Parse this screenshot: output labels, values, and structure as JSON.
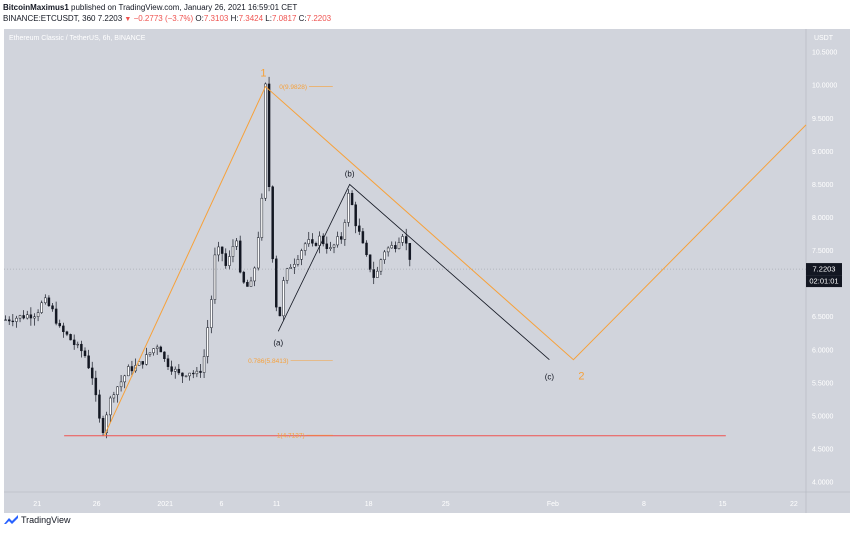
{
  "header": {
    "line1_user": "BitcoinMaximus1",
    "line1_rest": "published on TradingView.com, January 26, 2021 16:59:01 CET",
    "line2_symbol": "BINANCE:ETCUSDT, 360",
    "line2_last": "7.2203",
    "line2_change": "−0.2773 (−3.7%)",
    "line2_o_label": "O:",
    "line2_o": "7.3103",
    "line2_h_label": "H:",
    "line2_h": "7.3424",
    "line2_l_label": "L:",
    "line2_l": "7.0817",
    "line2_c_label": "C:",
    "line2_c": "7.2203"
  },
  "footer": {
    "brand": "TradingView"
  },
  "colors": {
    "background": "#d1d4dc",
    "candle": "#131722",
    "wave": "#f7a13a",
    "corrective": "#131722",
    "support": "#ef5350",
    "price_tag": "#131722"
  },
  "chart_data": {
    "type": "candlestick",
    "title": "Ethereum Classic / TetherUS, 6h, BINANCE",
    "y_unit": "USDT",
    "ylim": [
      3.85,
      10.85
    ],
    "yticks": [
      4.0,
      4.5,
      5.0,
      5.5,
      6.0,
      6.5,
      7.0,
      7.5,
      8.0,
      8.5,
      9.0,
      9.5,
      10.0,
      10.5
    ],
    "ytick_labels": [
      "4.0000",
      "4.5000",
      "5.0000",
      "5.5000",
      "6.0000",
      "6.5000",
      "7.0000",
      "7.5000",
      "8.0000",
      "8.5000",
      "9.0000",
      "9.5000",
      "10.0000",
      "10.5000"
    ],
    "x_ticks": [
      "21",
      "26",
      "2021",
      "6",
      "11",
      "18",
      "25",
      "Feb",
      "8",
      "15",
      "22"
    ],
    "last_price": "7.2203",
    "countdown": "02:01:01",
    "price_path": [
      [
        0,
        6.45
      ],
      [
        2,
        6.5
      ],
      [
        4,
        6.55
      ],
      [
        5,
        6.75
      ],
      [
        6,
        6.6
      ],
      [
        7,
        6.3
      ],
      [
        8,
        6.2
      ],
      [
        9,
        6.05
      ],
      [
        10,
        5.95
      ],
      [
        11,
        5.6
      ],
      [
        11.6,
        5.15
      ],
      [
        12.2,
        4.72
      ],
      [
        12.8,
        5.05
      ],
      [
        13.5,
        5.35
      ],
      [
        14.5,
        5.5
      ],
      [
        15.5,
        5.7
      ],
      [
        16.5,
        5.75
      ],
      [
        17.5,
        5.85
      ],
      [
        18.5,
        6.0
      ],
      [
        19.3,
        6.1
      ],
      [
        20,
        5.85
      ],
      [
        21,
        5.72
      ],
      [
        22,
        5.6
      ],
      [
        23,
        5.68
      ],
      [
        24,
        5.62
      ],
      [
        24.8,
        5.75
      ],
      [
        25.3,
        6.25
      ],
      [
        25.8,
        6.7
      ],
      [
        26.3,
        7.4
      ],
      [
        27,
        7.55
      ],
      [
        27.8,
        7.2
      ],
      [
        28.3,
        7.5
      ],
      [
        29,
        7.7
      ],
      [
        29.5,
        7.05
      ],
      [
        30.3,
        6.95
      ],
      [
        31,
        7.0
      ],
      [
        31.5,
        7.5
      ],
      [
        32.2,
        8.3
      ],
      [
        32.6,
        9.98
      ],
      [
        33,
        8.6
      ],
      [
        33.4,
        7.6
      ],
      [
        33.8,
        6.9
      ],
      [
        34.2,
        6.3
      ],
      [
        34.8,
        7.0
      ],
      [
        35.5,
        7.25
      ],
      [
        36.3,
        7.35
      ],
      [
        37,
        7.5
      ],
      [
        37.8,
        7.65
      ],
      [
        38.5,
        7.55
      ],
      [
        39.3,
        7.7
      ],
      [
        40,
        7.6
      ],
      [
        40.8,
        7.5
      ],
      [
        41.5,
        7.65
      ],
      [
        42.2,
        7.7
      ],
      [
        42.7,
        8.15
      ],
      [
        43.1,
        8.45
      ],
      [
        43.6,
        8.0
      ],
      [
        44.2,
        7.8
      ],
      [
        44.8,
        7.55
      ],
      [
        45.3,
        7.35
      ],
      [
        45.8,
        7.2
      ],
      [
        46.3,
        7.05
      ],
      [
        46.8,
        7.3
      ],
      [
        47.4,
        7.5
      ],
      [
        48.2,
        7.55
      ],
      [
        49,
        7.6
      ],
      [
        49.6,
        7.8
      ],
      [
        50,
        7.65
      ],
      [
        50.5,
        7.45
      ],
      [
        51,
        7.22
      ]
    ],
    "elliott_wave": {
      "labels": [
        "1",
        "2"
      ],
      "path": [
        [
          12.5,
          4.7
        ],
        [
          32.6,
          9.98
        ],
        [
          71,
          5.85
        ],
        [
          100,
          9.4
        ]
      ]
    },
    "corrective_wave": {
      "labels": [
        "(a)",
        "(b)",
        "(c)"
      ],
      "path": [
        [
          34.2,
          6.28
        ],
        [
          43.1,
          8.5
        ],
        [
          68,
          5.85
        ]
      ]
    },
    "fib_levels": [
      {
        "label": "0(9.9828)",
        "value": 9.98
      },
      {
        "label": "0.786(5.8413)",
        "value": 5.84
      },
      {
        "label": "1(4.7137)",
        "value": 4.71
      }
    ],
    "support_line": {
      "value": 4.7
    }
  }
}
